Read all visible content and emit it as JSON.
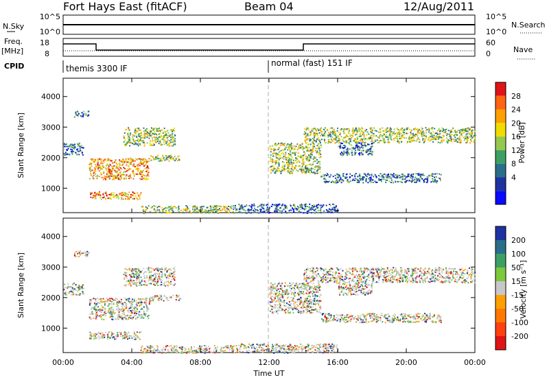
{
  "header": {
    "radar": "Fort Hays East (fitACF)",
    "beam": "Beam 04",
    "date": "12/Aug/2011"
  },
  "nsky_panel": {
    "left_label": "N.Sky",
    "right_label": "N.Search",
    "left_ticks": [
      "10^5",
      "10^0"
    ],
    "right_ticks": [
      "10^5",
      "10^0"
    ]
  },
  "freq_panel": {
    "left_label_1": "Freq.",
    "left_label_2": "[MHz]",
    "right_label": "Nave",
    "left_ticks": [
      "18",
      "8"
    ],
    "right_ticks": [
      "60",
      "0"
    ]
  },
  "cpid_panel": {
    "label": "CPID",
    "modes": [
      "themis 3300 IF",
      "normal (fast) 151 IF"
    ]
  },
  "chart_data": [
    {
      "type": "heatmap",
      "name": "power",
      "ylabel": "Slant Range [km]",
      "y_ticks": [
        "1000",
        "2000",
        "3000",
        "4000"
      ],
      "ylim": [
        200,
        4600
      ],
      "xlim": [
        0,
        24
      ],
      "colorbar": {
        "label": "Power [dB]",
        "ticks": [
          "28",
          "24",
          "20",
          "16",
          "12",
          "8",
          "4"
        ],
        "colors": [
          "#e01414",
          "#ff6410",
          "#ffa000",
          "#f0dc00",
          "#96c850",
          "#3ca064",
          "#2a6e8c",
          "#1e32a0",
          "#0a0aff"
        ]
      },
      "echo_regions": [
        {
          "t0": 0.6,
          "t1": 1.5,
          "r0": 3350,
          "r1": 3550,
          "level": "low"
        },
        {
          "t0": 0.0,
          "t1": 1.2,
          "r0": 2100,
          "r1": 2500,
          "level": "low"
        },
        {
          "t0": 1.5,
          "t1": 5.0,
          "r0": 1300,
          "r1": 2000,
          "level": "high"
        },
        {
          "t0": 3.5,
          "t1": 6.5,
          "r0": 2400,
          "r1": 3000,
          "level": "mid"
        },
        {
          "t0": 5.0,
          "t1": 6.8,
          "r0": 1900,
          "r1": 2100,
          "level": "mid"
        },
        {
          "t0": 1.5,
          "t1": 4.5,
          "r0": 650,
          "r1": 900,
          "level": "high"
        },
        {
          "t0": 4.5,
          "t1": 10.0,
          "r0": 200,
          "r1": 450,
          "level": "mid"
        },
        {
          "t0": 12.0,
          "t1": 15.0,
          "r0": 1500,
          "r1": 2500,
          "level": "mid"
        },
        {
          "t0": 14.0,
          "t1": 24.0,
          "r0": 2500,
          "r1": 3000,
          "level": "mid"
        },
        {
          "t0": 16.0,
          "t1": 18.0,
          "r0": 2100,
          "r1": 2500,
          "level": "low"
        },
        {
          "t0": 15.0,
          "t1": 22.0,
          "r0": 1200,
          "r1": 1500,
          "level": "low"
        },
        {
          "t0": 10.0,
          "t1": 16.0,
          "r0": 200,
          "r1": 500,
          "level": "low"
        }
      ]
    },
    {
      "type": "heatmap",
      "name": "velocity",
      "ylabel": "Slant Range [km]",
      "y_ticks": [
        "1000",
        "2000",
        "3000",
        "4000"
      ],
      "ylim": [
        200,
        4600
      ],
      "xlim": [
        0,
        24
      ],
      "colorbar": {
        "label": "Velocity [m s⁻¹]",
        "ticks": [
          "200",
          "100",
          "50",
          "15",
          "-15",
          "-50",
          "-100",
          "-200"
        ],
        "colors": [
          "#1e32a0",
          "#2a6e8c",
          "#3ca064",
          "#7dc83c",
          "#c8c8c8",
          "#ffa000",
          "#ff7800",
          "#ff4010",
          "#e01414"
        ]
      }
    }
  ],
  "x_axis": {
    "label": "Time UT",
    "ticks": [
      "00:00",
      "04:00",
      "08:00",
      "12:00",
      "16:00",
      "20:00",
      "00:00"
    ]
  }
}
